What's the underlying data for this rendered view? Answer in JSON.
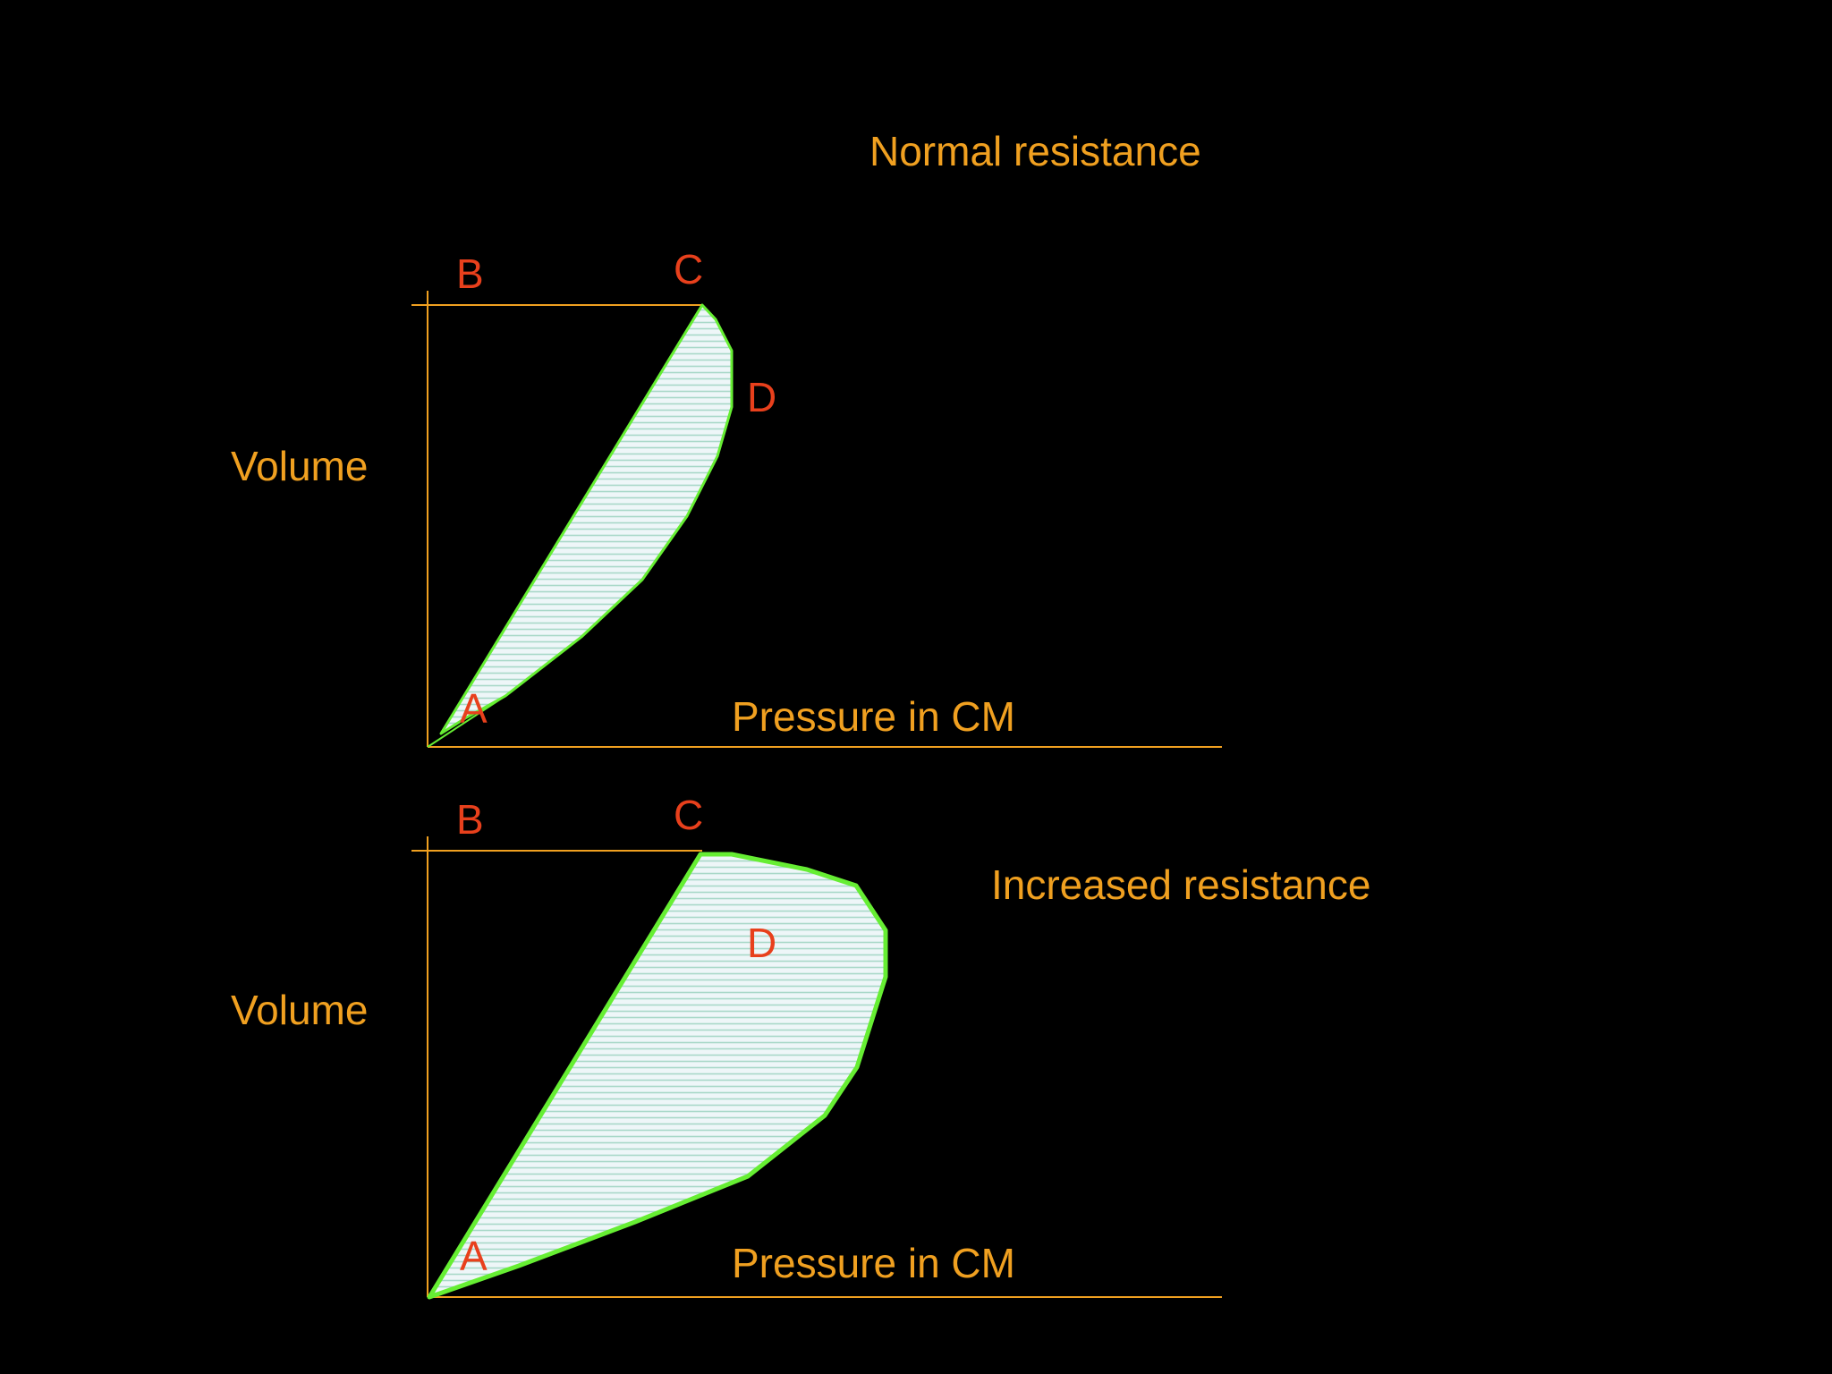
{
  "slide": {
    "background": "#000000",
    "colors": {
      "text": "#f0a020",
      "points": "#e8401c",
      "loop_outline": "#66ee33",
      "loop_fill": "#eef6f8",
      "hatch": "#a8d8c8"
    }
  },
  "panels": [
    {
      "title": "Normal resistance",
      "y_axis_label": "Volume",
      "x_axis_label": "Pressure in CM",
      "points": {
        "a": "A",
        "b": "B",
        "c": "C",
        "d": "D"
      }
    },
    {
      "title": "Increased resistance",
      "y_axis_label": "Volume",
      "x_axis_label": "Pressure in CM",
      "points": {
        "a": "A",
        "b": "B",
        "c": "C",
        "d": "D"
      }
    }
  ]
}
